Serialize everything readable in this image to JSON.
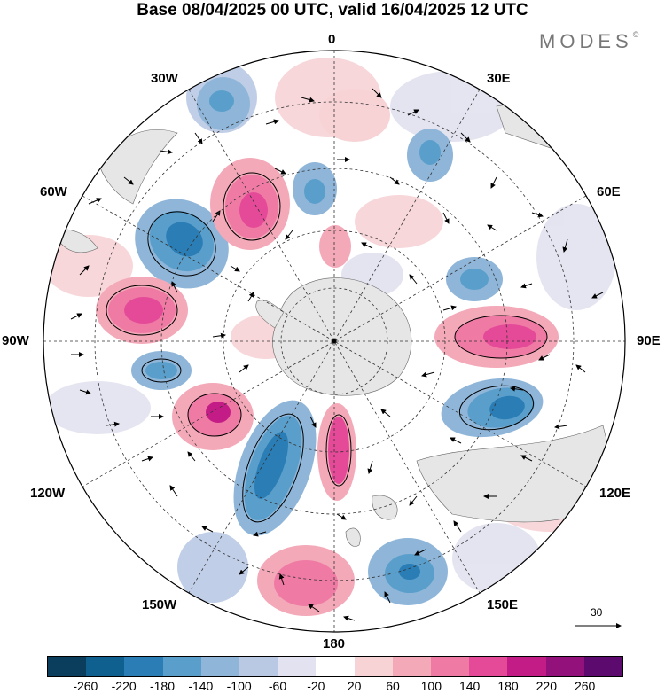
{
  "title": "Base 08/04/2025 00 UTC, valid 16/04/2025 12 UTC",
  "brand": "MODES",
  "brand_mark": "©",
  "longitude_labels": {
    "top": "0",
    "left": "90W",
    "right": "90E",
    "bottom": "180",
    "upper_left_30": "30W",
    "upper_left_60": "60W",
    "upper_right_30": "30E",
    "upper_right_60": "60E",
    "lower_left_120": "120W",
    "lower_left_150": "150W",
    "lower_right_120": "120E",
    "lower_right_150": "150E"
  },
  "reference_vector": "30",
  "colorbar": {
    "colors": [
      "#0b3d5c",
      "#0f5f8f",
      "#2a7db5",
      "#5a9fcb",
      "#8fb6d9",
      "#b9c9e4",
      "#e2e2f0",
      "#ffffff",
      "#f7d3d6",
      "#f3a9b8",
      "#ef7ba5",
      "#e54a98",
      "#c41c86",
      "#92117a",
      "#5c0a6d"
    ],
    "ticks": [
      "-260",
      "-220",
      "-180",
      "-140",
      "-100",
      "-60",
      "-20",
      "20",
      "60",
      "100",
      "140",
      "180",
      "220",
      "260"
    ]
  },
  "map_data": {
    "projection": "south polar stereographic",
    "anomaly_centers": [
      {
        "sign": "negative",
        "near": "60W"
      },
      {
        "sign": "positive",
        "near": "30W-60W"
      },
      {
        "sign": "positive",
        "near": "90W"
      },
      {
        "sign": "negative",
        "near": "100W"
      },
      {
        "sign": "positive",
        "near": "120W"
      },
      {
        "sign": "negative",
        "near": "150W"
      },
      {
        "sign": "positive",
        "near": "180"
      },
      {
        "sign": "negative",
        "near": "150E"
      },
      {
        "sign": "negative",
        "near": "110E"
      },
      {
        "sign": "positive",
        "near": "90E"
      },
      {
        "sign": "negative",
        "near": "30E"
      }
    ]
  }
}
